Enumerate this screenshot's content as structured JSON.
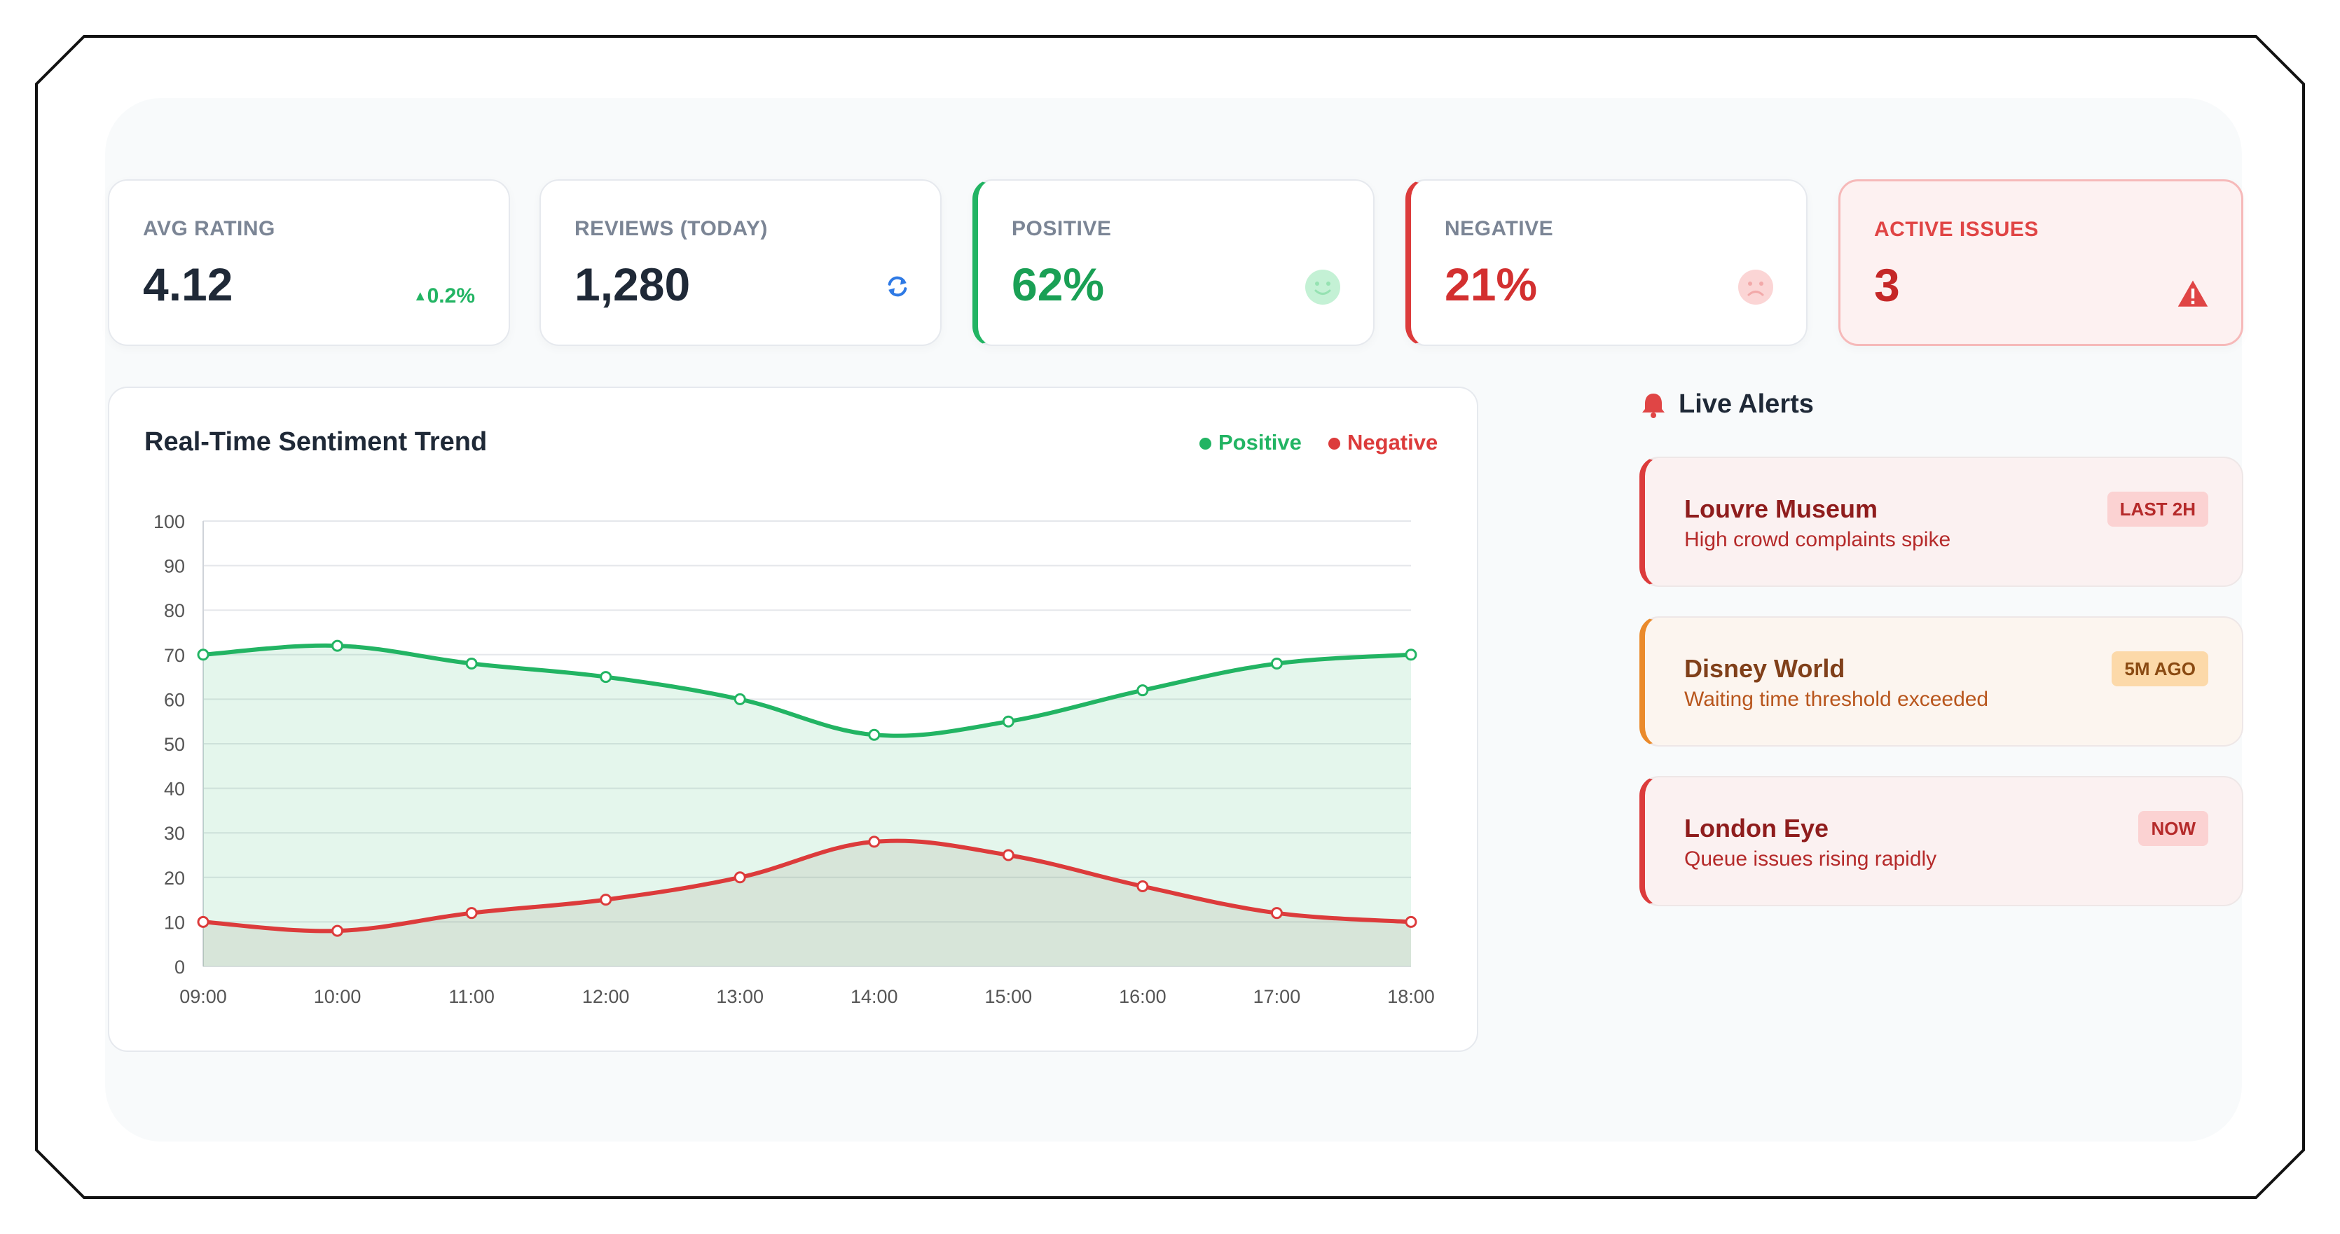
{
  "stats": {
    "avg_rating": {
      "label": "AVG RATING",
      "value": "4.12",
      "trend": "0.2%"
    },
    "reviews_today": {
      "label": "REVIEWS (TODAY)",
      "value": "1,280"
    },
    "positive": {
      "label": "POSITIVE",
      "value": "62%"
    },
    "negative": {
      "label": "NEGATIVE",
      "value": "21%"
    },
    "active_issues": {
      "label": "ACTIVE ISSUES",
      "value": "3"
    }
  },
  "icons": {
    "trend": "triangle-up-icon",
    "reviews": "refresh-icon",
    "positive": "smile-face-icon",
    "negative": "sad-face-icon",
    "issues": "warning-triangle-icon",
    "alerts": "bell-icon"
  },
  "colors": {
    "positive": "#22b463",
    "negative": "#dc3b3b",
    "warning": "#ea8a2b",
    "refresh": "#2f7ae5"
  },
  "chart_data": {
    "type": "line",
    "title": "Real-Time Sentiment Trend",
    "categories": [
      "09:00",
      "10:00",
      "11:00",
      "12:00",
      "13:00",
      "14:00",
      "15:00",
      "16:00",
      "17:00",
      "18:00"
    ],
    "series": [
      {
        "name": "Positive",
        "color": "#22b463",
        "values": [
          70,
          72,
          68,
          65,
          60,
          52,
          55,
          62,
          68,
          70
        ]
      },
      {
        "name": "Negative",
        "color": "#dc3b3b",
        "values": [
          10,
          8,
          12,
          15,
          20,
          28,
          25,
          18,
          12,
          10
        ]
      }
    ],
    "ylim": [
      0,
      100
    ],
    "yticks": [
      0,
      10,
      20,
      30,
      40,
      50,
      60,
      70,
      80,
      90,
      100
    ],
    "grid": true,
    "area_fill": true,
    "legend_position": "top-right"
  },
  "alerts": {
    "title": "Live Alerts",
    "items": [
      {
        "name": "Louvre Museum",
        "desc": "High crowd complaints spike",
        "badge": "LAST 2H"
      },
      {
        "name": "Disney World",
        "desc": "Waiting time threshold exceeded",
        "badge": "5M AGO"
      },
      {
        "name": "London Eye",
        "desc": "Queue issues rising rapidly",
        "badge": "NOW"
      }
    ]
  }
}
